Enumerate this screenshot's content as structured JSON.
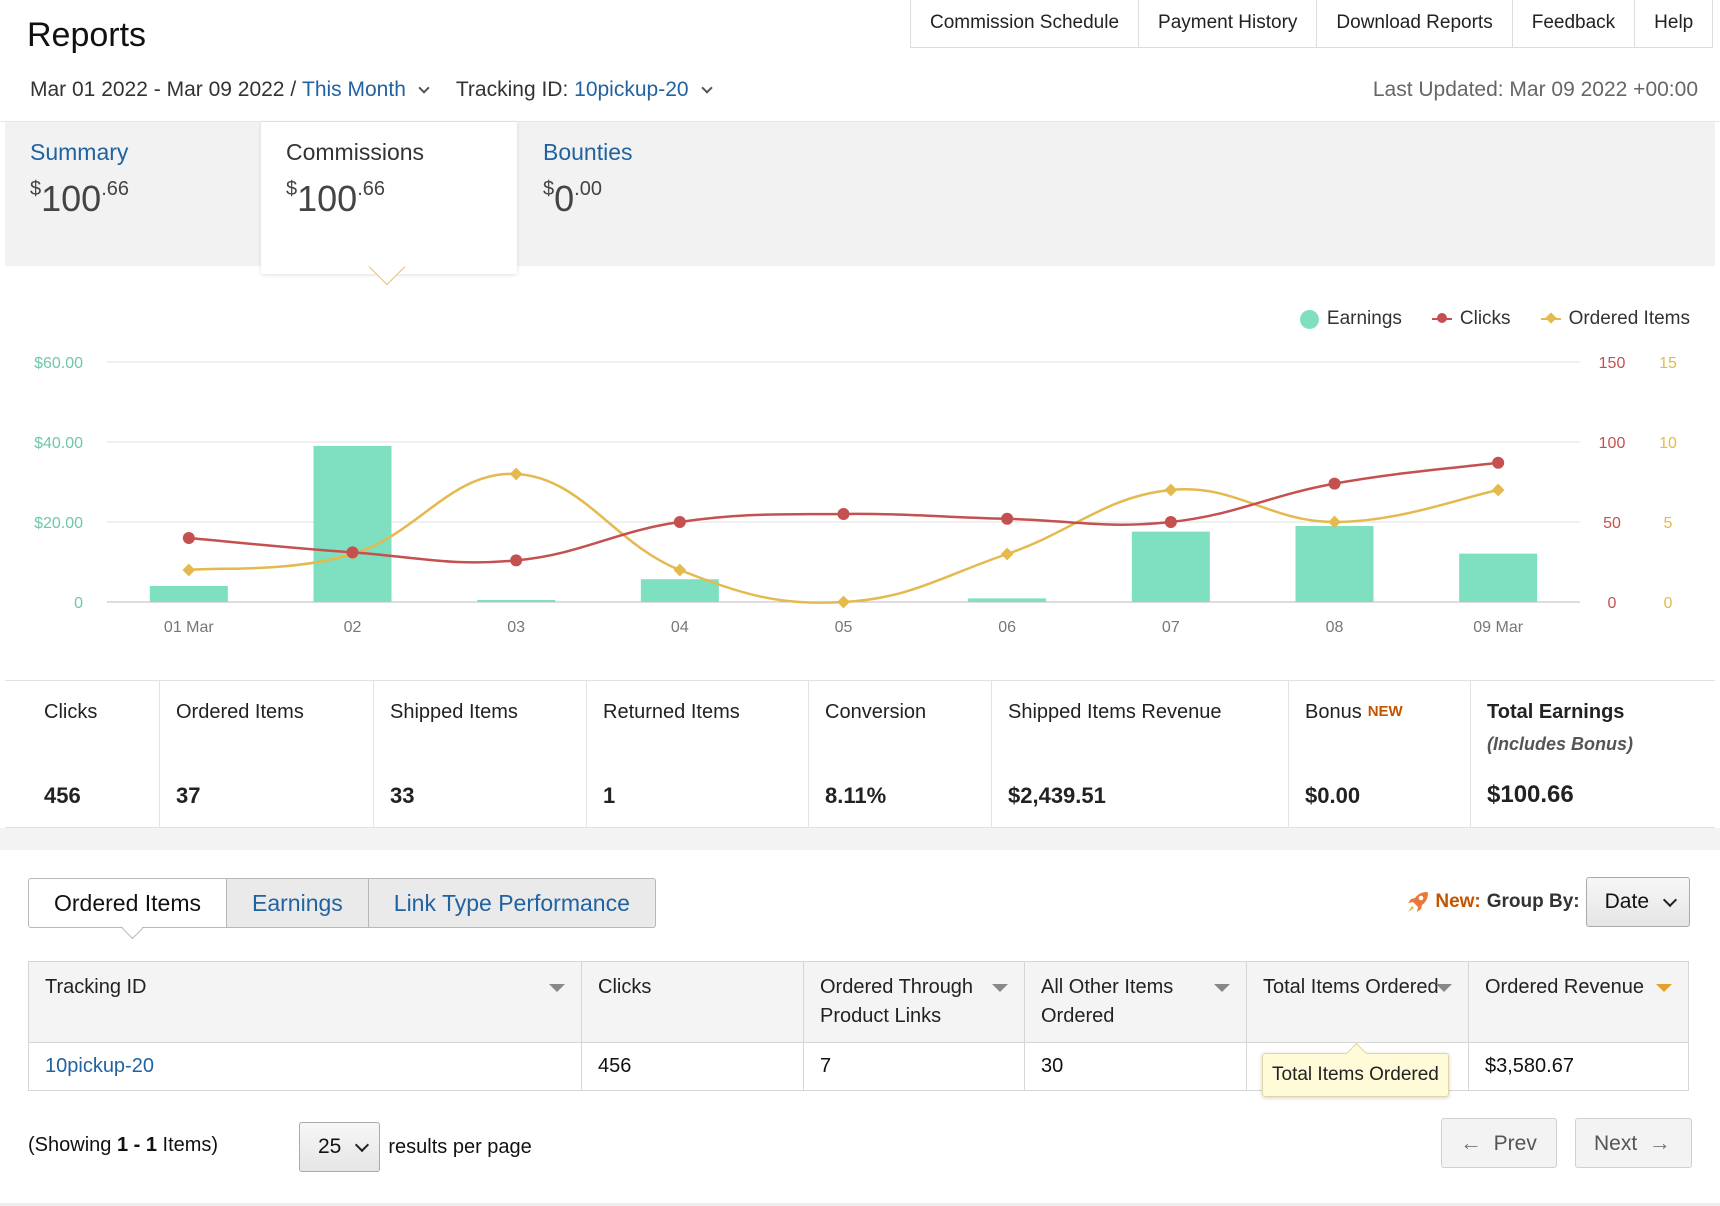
{
  "header": {
    "title": "Reports",
    "date_range": "Mar 01 2022 - Mar 09 2022 /",
    "period_link": "This Month",
    "tracking_label": "Tracking ID:",
    "tracking_value": "10pickup-20",
    "last_updated": "Last Updated: Mar 09 2022 +00:00",
    "nav": [
      "Commission Schedule",
      "Payment History",
      "Download Reports",
      "Feedback",
      "Help"
    ]
  },
  "summary_tabs": [
    {
      "label": "Summary",
      "currency": "$",
      "whole": "100",
      "cents": ".66"
    },
    {
      "label": "Commissions",
      "currency": "$",
      "whole": "100",
      "cents": ".66"
    },
    {
      "label": "Bounties",
      "currency": "$",
      "whole": "0",
      "cents": ".00"
    }
  ],
  "legend": [
    "Earnings",
    "Clicks",
    "Ordered Items"
  ],
  "colors": {
    "earnings": "#7fdfc1",
    "clicks": "#c4504f",
    "items": "#e4b94d",
    "link": "#2162a1",
    "accent": "#c45500"
  },
  "chart_data": {
    "type": "bar",
    "categories": [
      "01 Mar",
      "02",
      "03",
      "04",
      "05",
      "06",
      "07",
      "08",
      "09 Mar"
    ],
    "series": [
      {
        "name": "Earnings",
        "type": "bar",
        "axis": "left",
        "values": [
          4.0,
          39.0,
          0.5,
          5.7,
          0,
          0.9,
          17.6,
          19.0,
          12.1
        ]
      },
      {
        "name": "Clicks",
        "type": "line",
        "axis": "right1",
        "values": [
          40,
          31,
          26,
          50,
          55,
          52,
          50,
          74,
          87
        ]
      },
      {
        "name": "Ordered Items",
        "type": "line",
        "axis": "right2",
        "values": [
          2,
          3,
          8,
          2,
          0,
          3,
          7,
          5,
          7
        ]
      }
    ],
    "y_left": {
      "ticks": [
        "0",
        "$20.00",
        "$40.00",
        "$60.00"
      ],
      "range": [
        0,
        60
      ]
    },
    "y_right1": {
      "ticks": [
        "0",
        "50",
        "100",
        "150"
      ],
      "range": [
        0,
        150
      ]
    },
    "y_right2": {
      "ticks": [
        "0",
        "5",
        "10",
        "15"
      ],
      "range": [
        0,
        15
      ]
    },
    "grid": true,
    "legend_position": "top-right"
  },
  "stats": [
    {
      "label": "Clicks",
      "value": "456"
    },
    {
      "label": "Ordered Items",
      "value": "37"
    },
    {
      "label": "Shipped Items",
      "value": "33"
    },
    {
      "label": "Returned Items",
      "value": "1"
    },
    {
      "label": "Conversion",
      "value": "8.11%"
    },
    {
      "label": "Shipped Items Revenue",
      "value": "$2,439.51"
    },
    {
      "label": "Bonus",
      "badge": "NEW",
      "value": "$0.00"
    },
    {
      "label": "Total Earnings",
      "sub": "(Includes Bonus)",
      "value": "$100.66"
    }
  ],
  "subtabs": [
    "Ordered Items",
    "Earnings",
    "Link Type Performance"
  ],
  "groupby": {
    "new": "New:",
    "label": "Group By:",
    "value": "Date"
  },
  "table": {
    "headers": [
      "Tracking ID",
      "Clicks",
      "Ordered Through Product Links",
      "All Other Items Ordered",
      "Total Items Ordered",
      "Ordered Revenue"
    ],
    "rows": [
      [
        "10pickup-20",
        "456",
        "7",
        "30",
        "",
        "$3,580.67"
      ]
    ],
    "tooltip": "Total Items Ordered"
  },
  "pagination": {
    "showing_prefix": "(Showing ",
    "showing_range": "1 - 1",
    "showing_suffix": " Items)",
    "per_page": "25",
    "per_page_label": "results per page",
    "prev": "Prev",
    "next": "Next"
  }
}
